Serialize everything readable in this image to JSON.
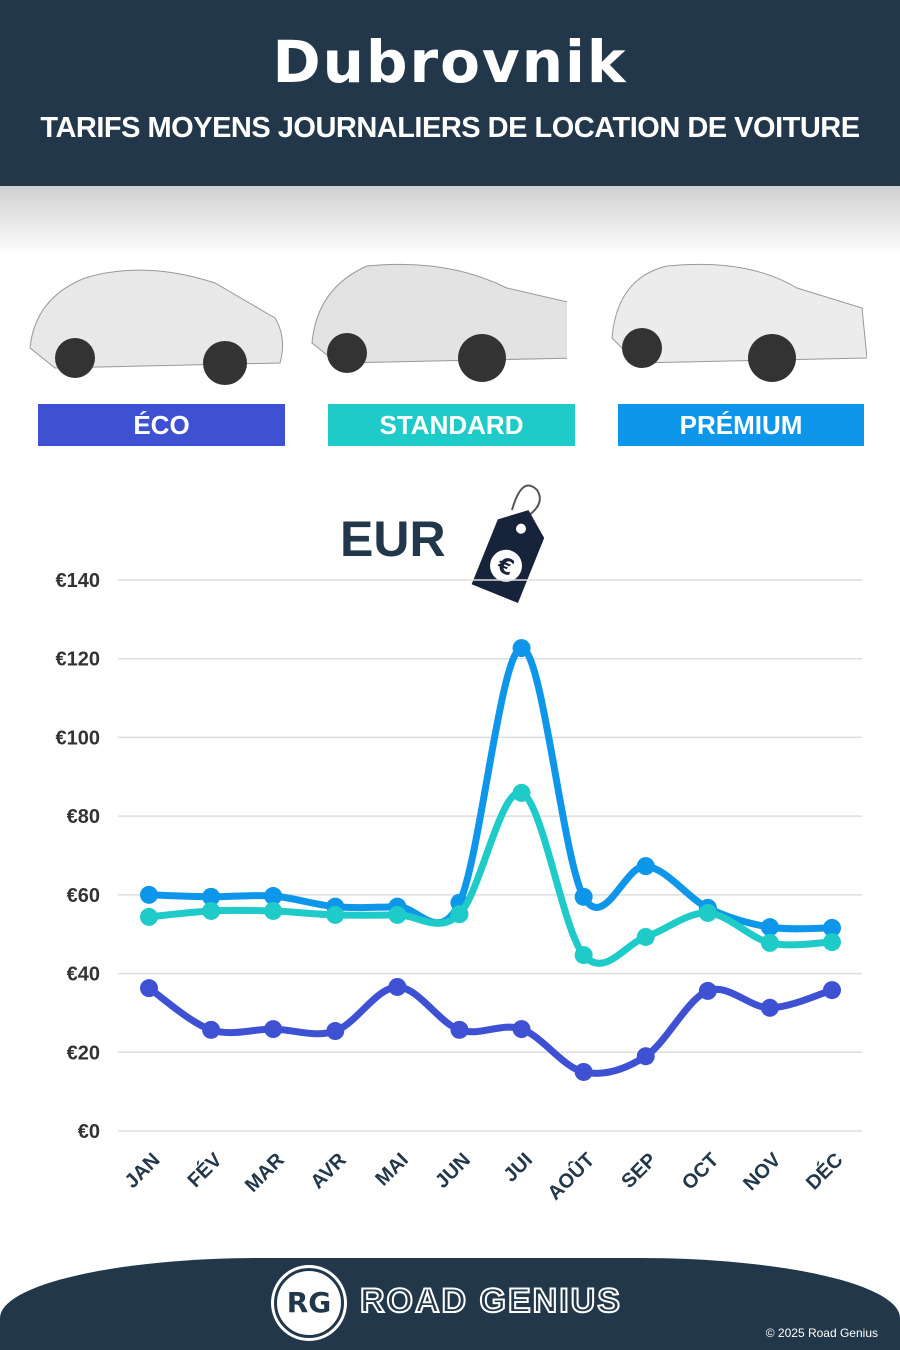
{
  "header": {
    "city": "Dubrovnik",
    "subtitle": "TARIFS MOYENS JOURNALIERS DE LOCATION DE VOITURE"
  },
  "categories_badges": [
    {
      "label": "ÉCO",
      "color": "#3f51d3"
    },
    {
      "label": "STANDARD",
      "color": "#1ecbc8"
    },
    {
      "label": "PRÉMIUM",
      "color": "#0d96ea"
    }
  ],
  "currency_label": "EUR",
  "currency_icon": "price-tag-euro-icon",
  "chart_data": {
    "type": "line",
    "categories": [
      "JAN",
      "FÉV",
      "MAR",
      "AVR",
      "MAI",
      "JUN",
      "JUI",
      "AOÛT",
      "SEP",
      "OCT",
      "NOV",
      "DÉC"
    ],
    "ylim": [
      0,
      140
    ],
    "yticks": [
      0,
      20,
      40,
      60,
      80,
      100,
      120,
      140
    ],
    "ytick_labels": [
      "€0",
      "€20",
      "€40",
      "€60",
      "€80",
      "€100",
      "€120",
      "€140"
    ],
    "grid": true,
    "series": [
      {
        "name": "PRÉMIUM",
        "color": "#0d96ea",
        "values": [
          60,
          59.5,
          59.7,
          57,
          57,
          58,
          122.7,
          59.5,
          67.3,
          56.7,
          51.8,
          51.6
        ]
      },
      {
        "name": "STANDARD",
        "color": "#1ecbc8",
        "values": [
          54.4,
          55.9,
          55.9,
          54.9,
          54.9,
          55.1,
          85.9,
          44.7,
          49.3,
          55.4,
          47.8,
          48
        ]
      },
      {
        "name": "ÉCO",
        "color": "#3f51d3",
        "values": [
          36.3,
          25.7,
          25.9,
          25.4,
          36.6,
          25.7,
          25.9,
          15,
          19,
          35.6,
          31.3,
          35.8
        ]
      }
    ]
  },
  "footer": {
    "logo": "RG",
    "brand": "ROAD GENIUS",
    "copyright": "© 2025 Road Genius"
  }
}
